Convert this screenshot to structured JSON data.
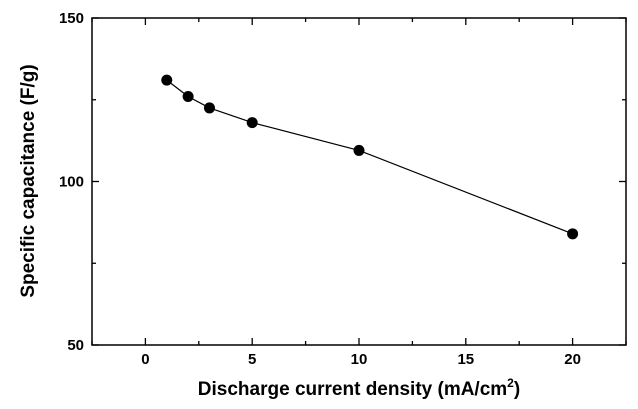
{
  "chart_data": {
    "type": "line",
    "title": "",
    "xlabel": "Discharge current density (mA/cm",
    "xlabel_sup": "2",
    "xlabel_suffix": ")",
    "ylabel": "Specific capacitance (F/g)",
    "xlim": [
      -2.5,
      22.5
    ],
    "ylim": [
      50,
      150
    ],
    "x_ticks": [
      0,
      5,
      10,
      15,
      20
    ],
    "y_ticks": [
      50,
      100,
      150
    ],
    "grid": false,
    "legend": "none",
    "series": [
      {
        "x": [
          1,
          2,
          3,
          5,
          10,
          20
        ],
        "y": [
          131,
          126,
          122.5,
          118,
          109.5,
          84
        ],
        "color": "#000000",
        "marker": "filled-circle"
      }
    ]
  }
}
